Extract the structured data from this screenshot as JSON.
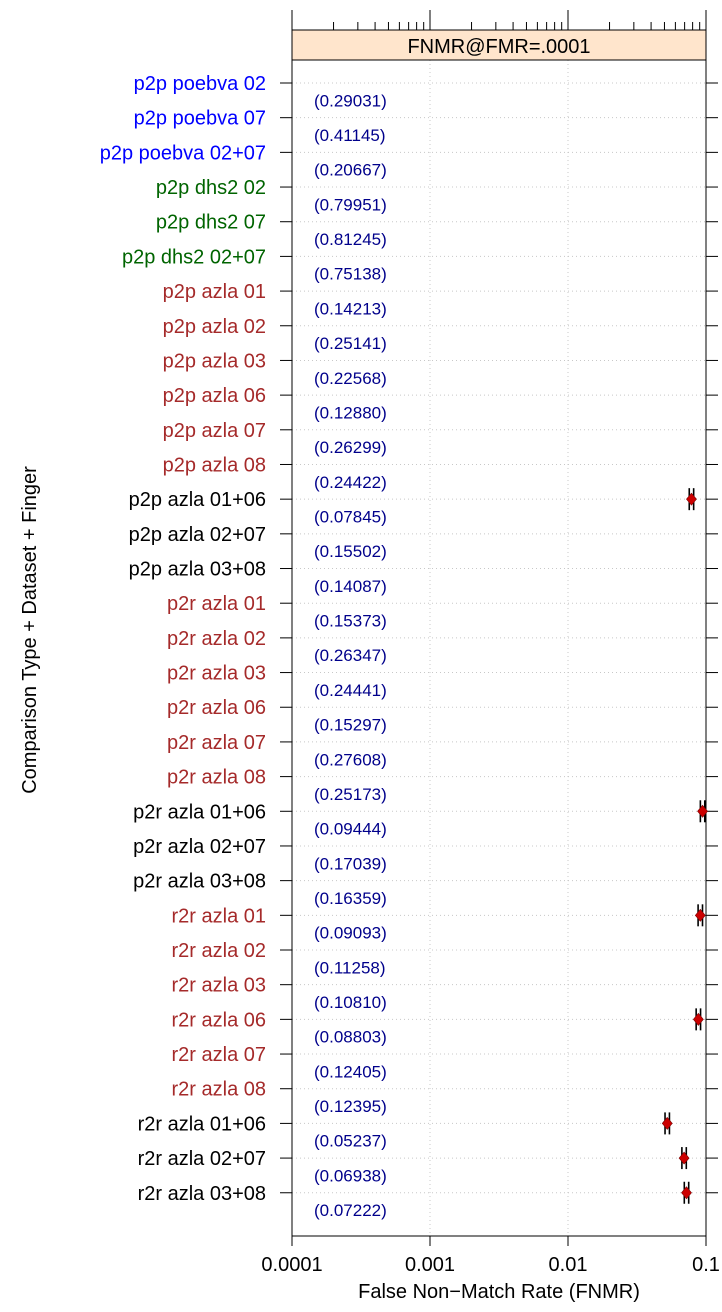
{
  "chart_data": {
    "type": "scatter",
    "title": "",
    "strip_label": "FNMR@FMR=.0001",
    "xlabel": "False Non−Match Rate (FNMR)",
    "ylabel": "Comparison Type + Dataset + Finger",
    "xscale": "log",
    "xlim": [
      0.0001,
      0.1
    ],
    "xticks": [
      {
        "value": 0.0001,
        "label": "0.0001"
      },
      {
        "value": 0.001,
        "label": "0.001"
      },
      {
        "value": 0.01,
        "label": "0.01"
      },
      {
        "value": 0.1,
        "label": "0.1"
      }
    ],
    "grid": true,
    "marker_color": "#cc0000",
    "categories": [
      "p2p poebva 02",
      "p2p poebva 07",
      "p2p poebva 02+07",
      "p2p dhs2 02",
      "p2p dhs2 07",
      "p2p dhs2 02+07",
      "p2p azla 01",
      "p2p azla 02",
      "p2p azla 03",
      "p2p azla 06",
      "p2p azla 07",
      "p2p azla 08",
      "p2p azla 01+06",
      "p2p azla 02+07",
      "p2p azla 03+08",
      "p2r azla 01",
      "p2r azla 02",
      "p2r azla 03",
      "p2r azla 06",
      "p2r azla 07",
      "p2r azla 08",
      "p2r azla 01+06",
      "p2r azla 02+07",
      "p2r azla 03+08",
      "r2r azla 01",
      "r2r azla 02",
      "r2r azla 03",
      "r2r azla 06",
      "r2r azla 07",
      "r2r azla 08",
      "r2r azla 01+06",
      "r2r azla 02+07",
      "r2r azla 03+08"
    ],
    "category_colors": [
      "#0000ff",
      "#0000ff",
      "#0000ff",
      "#006400",
      "#006400",
      "#006400",
      "#a52a2a",
      "#a52a2a",
      "#a52a2a",
      "#a52a2a",
      "#a52a2a",
      "#a52a2a",
      "#000000",
      "#000000",
      "#000000",
      "#a52a2a",
      "#a52a2a",
      "#a52a2a",
      "#a52a2a",
      "#a52a2a",
      "#a52a2a",
      "#000000",
      "#000000",
      "#000000",
      "#a52a2a",
      "#a52a2a",
      "#a52a2a",
      "#a52a2a",
      "#a52a2a",
      "#a52a2a",
      "#000000",
      "#000000",
      "#000000"
    ],
    "value_labels": [
      "(0.29031)",
      "(0.41145)",
      "(0.20667)",
      "(0.79951)",
      "(0.81245)",
      "(0.75138)",
      "(0.14213)",
      "(0.25141)",
      "(0.22568)",
      "(0.12880)",
      "(0.26299)",
      "(0.24422)",
      "(0.07845)",
      "(0.15502)",
      "(0.14087)",
      "(0.15373)",
      "(0.26347)",
      "(0.24441)",
      "(0.15297)",
      "(0.27608)",
      "(0.25173)",
      "(0.09444)",
      "(0.17039)",
      "(0.16359)",
      "(0.09093)",
      "(0.11258)",
      "(0.10810)",
      "(0.08803)",
      "(0.12405)",
      "(0.12395)",
      "(0.05237)",
      "(0.06938)",
      "(0.07222)"
    ],
    "value_label_color": "#00008b",
    "points": [
      {
        "category": "p2p azla 01+06",
        "x": 0.07845
      },
      {
        "category": "p2r azla 01+06",
        "x": 0.09444
      },
      {
        "category": "r2r azla 01",
        "x": 0.09093
      },
      {
        "category": "r2r azla 06",
        "x": 0.08803
      },
      {
        "category": "r2r azla 01+06",
        "x": 0.05237
      },
      {
        "category": "r2r azla 02+07",
        "x": 0.06938
      },
      {
        "category": "r2r azla 03+08",
        "x": 0.07222
      }
    ]
  }
}
